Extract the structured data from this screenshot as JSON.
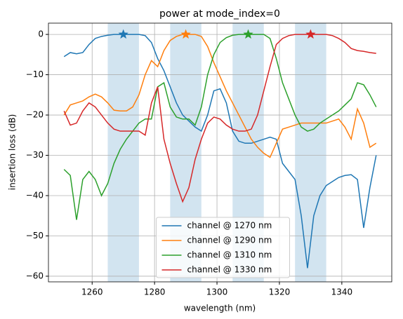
{
  "chart_data": {
    "type": "line",
    "title": "power at mode_index=0",
    "x_label": "wavelength (nm)",
    "y_label": "insertion loss (dB)",
    "xlim": [
      1246,
      1356
    ],
    "ylim": [
      -61.4,
      2.8
    ],
    "xticks": [
      1260,
      1280,
      1300,
      1320,
      1340
    ],
    "yticks": [
      {
        "value": 0,
        "label": "0"
      },
      {
        "value": -10,
        "label": "−10"
      },
      {
        "value": -20,
        "label": "−20"
      },
      {
        "value": -30,
        "label": "−30"
      },
      {
        "value": -40,
        "label": "−40"
      },
      {
        "value": -50,
        "label": "−50"
      },
      {
        "value": -60,
        "label": "−60"
      }
    ],
    "grid": true,
    "legend": "lower center",
    "bands": [
      [
        1265,
        1275
      ],
      [
        1285,
        1295
      ],
      [
        1305,
        1315
      ],
      [
        1325,
        1335
      ]
    ],
    "band_color": "#1f77b4",
    "x": [
      1251,
      1253,
      1255,
      1257,
      1259,
      1261,
      1263,
      1265,
      1267,
      1269,
      1271,
      1273,
      1275,
      1277,
      1279,
      1281,
      1283,
      1285,
      1287,
      1289,
      1291,
      1293,
      1295,
      1297,
      1299,
      1301,
      1303,
      1305,
      1307,
      1309,
      1311,
      1313,
      1315,
      1317,
      1319,
      1321,
      1323,
      1325,
      1327,
      1329,
      1331,
      1333,
      1335,
      1337,
      1339,
      1341,
      1343,
      1345,
      1347,
      1349,
      1351
    ],
    "series": [
      {
        "name": "channel @ 1270 nm",
        "color": "#1f77b4",
        "peak": [
          1270,
          0
        ],
        "values": [
          -5.5,
          -4.5,
          -4.8,
          -4.5,
          -2.5,
          -1,
          -0.5,
          -0.2,
          0,
          0,
          0,
          0,
          0,
          -0.3,
          -2,
          -6,
          -9,
          -13,
          -17,
          -20,
          -21.5,
          -23,
          -24,
          -20,
          -14,
          -13.5,
          -17,
          -24,
          -26.5,
          -27,
          -27,
          -26.5,
          -26,
          -25.5,
          -26,
          -32,
          -34,
          -36,
          -45,
          -58,
          -45,
          -40,
          -37.5,
          -36.5,
          -35.5,
          -35,
          -34.8,
          -36,
          -48,
          -38,
          -30
        ]
      },
      {
        "name": "channel @ 1290 nm",
        "color": "#ff7f0e",
        "peak": [
          1290,
          0
        ],
        "values": [
          -20,
          -17.5,
          -17,
          -16.5,
          -15.5,
          -14.8,
          -15.5,
          -17,
          -18.8,
          -19,
          -19,
          -18,
          -15,
          -10,
          -6.5,
          -8,
          -4,
          -1.5,
          -0.5,
          0,
          0,
          0,
          -0.5,
          -3,
          -7,
          -10.5,
          -14,
          -17,
          -20,
          -23,
          -26,
          -28,
          -29.5,
          -30.5,
          -27,
          -23.5,
          -23,
          -22.5,
          -22,
          -22,
          -22,
          -22,
          -22,
          -21.5,
          -21,
          -23,
          -26,
          -18.5,
          -22,
          -28,
          -27
        ]
      },
      {
        "name": "channel @ 1310 nm",
        "color": "#2ca02c",
        "peak": [
          1310,
          0
        ],
        "values": [
          -33.5,
          -35,
          -46,
          -36,
          -34,
          -36,
          -40,
          -37,
          -32,
          -28.5,
          -26,
          -24,
          -22,
          -21,
          -21,
          -13,
          -12,
          -18,
          -20.5,
          -21,
          -21,
          -22.5,
          -18,
          -10,
          -5,
          -2,
          -0.8,
          -0.2,
          0,
          0,
          0,
          0,
          0,
          -1,
          -6,
          -12,
          -16,
          -20,
          -23,
          -24,
          -23.5,
          -22,
          -21,
          -20,
          -19,
          -17.5,
          -16,
          -12,
          -12.5,
          -15,
          -18
        ]
      },
      {
        "name": "channel @ 1330 nm",
        "color": "#d62728",
        "peak": [
          1330,
          0
        ],
        "values": [
          -19,
          -22.5,
          -22,
          -19,
          -17,
          -18,
          -20,
          -22,
          -23.5,
          -24,
          -24,
          -24,
          -24,
          -25,
          -17,
          -13,
          -26,
          -32,
          -37,
          -41.5,
          -38,
          -31,
          -26,
          -22,
          -20.5,
          -21,
          -22.5,
          -23.5,
          -24,
          -24,
          -23.5,
          -20,
          -14,
          -8,
          -2.5,
          -1,
          -0.3,
          0,
          0,
          0,
          0,
          0,
          0,
          -0.3,
          -1,
          -2,
          -3.5,
          -4,
          -4.2,
          -4.5,
          -4.7
        ]
      }
    ]
  }
}
